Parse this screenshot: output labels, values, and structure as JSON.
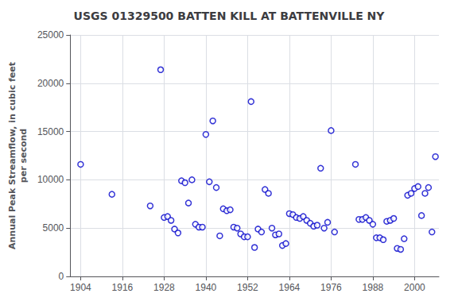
{
  "chart_data": {
    "type": "scatter",
    "title": "USGS 01329500 BATTEN KILL AT BATTENVILLE NY",
    "ylabel": "Annual Peak Streamflow, in cubic feet\nper second",
    "x": [
      1904,
      1913,
      1924,
      1927,
      1928,
      1929,
      1930,
      1931,
      1932,
      1933,
      1934,
      1935,
      1936,
      1937,
      1938,
      1939,
      1940,
      1941,
      1942,
      1943,
      1944,
      1945,
      1946,
      1947,
      1948,
      1949,
      1950,
      1951,
      1952,
      1953,
      1954,
      1955,
      1956,
      1957,
      1958,
      1959,
      1960,
      1961,
      1962,
      1963,
      1964,
      1965,
      1966,
      1967,
      1968,
      1969,
      1970,
      1971,
      1972,
      1973,
      1974,
      1975,
      1976,
      1977,
      1983,
      1984,
      1985,
      1986,
      1987,
      1988,
      1989,
      1990,
      1991,
      1992,
      1993,
      1994,
      1995,
      1996,
      1997,
      1998,
      1999,
      2000,
      2001,
      2002,
      2003,
      2004,
      2005,
      2006
    ],
    "values": [
      11600,
      8500,
      7300,
      21400,
      6100,
      6200,
      5800,
      4900,
      4500,
      9900,
      9700,
      7600,
      10000,
      5400,
      5100,
      5100,
      14700,
      9800,
      16100,
      9200,
      4200,
      7000,
      6800,
      6900,
      5100,
      5000,
      4400,
      4100,
      4100,
      18100,
      3000,
      4900,
      4600,
      9000,
      8600,
      5000,
      4300,
      4400,
      3200,
      3400,
      6500,
      6400,
      6100,
      6000,
      6200,
      5800,
      5500,
      5200,
      5300,
      11200,
      5000,
      5600,
      15100,
      4600,
      11600,
      5900,
      5900,
      6100,
      5800,
      5400,
      4000,
      4000,
      3800,
      5700,
      5800,
      6000,
      2900,
      2800,
      3900,
      8400,
      8600,
      9100,
      9300,
      6300,
      8600,
      9200,
      4600,
      12400
    ],
    "color": "#0000CC",
    "marker": "circle",
    "xlim": [
      1901,
      2007
    ],
    "xticks": [
      1904,
      1916,
      1928,
      1940,
      1952,
      1964,
      1976,
      1988,
      2000
    ],
    "ylim": [
      0,
      25000
    ],
    "yticks": [
      0,
      5000,
      10000,
      15000,
      20000,
      25000
    ],
    "grid": true
  }
}
